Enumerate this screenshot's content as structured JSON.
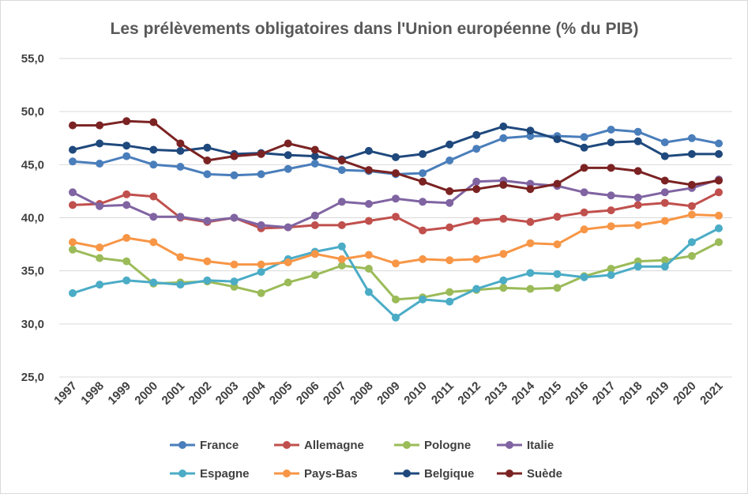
{
  "chart_data": {
    "type": "line",
    "title": "Les prélèvements obligatoires dans l'Union européenne (% du PIB)",
    "xlabel": "",
    "ylabel": "",
    "ylim": [
      25,
      55
    ],
    "yticks": [
      "25,0",
      "30,0",
      "35,0",
      "40,0",
      "45,0",
      "50,0",
      "55,0"
    ],
    "grid": true,
    "legend_position": "bottom",
    "x": [
      "1997",
      "1998",
      "1999",
      "2000",
      "2001",
      "2002",
      "2003",
      "2004",
      "2005",
      "2006",
      "2007",
      "2008",
      "2009",
      "2010",
      "2011",
      "2012",
      "2013",
      "2014",
      "2015",
      "2016",
      "2017",
      "2018",
      "2019",
      "2020",
      "2021"
    ],
    "series": [
      {
        "name": "France",
        "color": "#4a7ebb",
        "values": [
          45.3,
          45.1,
          45.8,
          45.0,
          44.8,
          44.1,
          44.0,
          44.1,
          44.6,
          45.1,
          44.5,
          44.4,
          44.1,
          44.2,
          45.4,
          46.5,
          47.5,
          47.7,
          47.7,
          47.6,
          48.3,
          48.1,
          47.1,
          47.5,
          47.0
        ]
      },
      {
        "name": "Allemagne",
        "color": "#c0504d",
        "values": [
          41.2,
          41.3,
          42.2,
          42.0,
          40.0,
          39.6,
          40.0,
          39.0,
          39.1,
          39.3,
          39.3,
          39.7,
          40.1,
          38.8,
          39.1,
          39.7,
          39.9,
          39.6,
          40.1,
          40.5,
          40.7,
          41.2,
          41.4,
          41.1,
          42.4
        ]
      },
      {
        "name": "Pologne",
        "color": "#9bbb59",
        "values": [
          37.0,
          36.2,
          35.9,
          33.8,
          33.9,
          34.0,
          33.5,
          32.9,
          33.9,
          34.6,
          35.5,
          35.2,
          32.3,
          32.5,
          33.0,
          33.2,
          33.4,
          33.3,
          33.4,
          34.5,
          35.2,
          35.9,
          36.0,
          36.4,
          37.7
        ]
      },
      {
        "name": "Italie",
        "color": "#8064a2",
        "values": [
          42.4,
          41.1,
          41.2,
          40.1,
          40.1,
          39.7,
          40.0,
          39.3,
          39.1,
          40.2,
          41.5,
          41.3,
          41.8,
          41.5,
          41.4,
          43.4,
          43.5,
          43.2,
          43.0,
          42.4,
          42.1,
          41.9,
          42.4,
          42.8,
          43.6
        ]
      },
      {
        "name": "Espagne",
        "color": "#4bacc6",
        "values": [
          32.9,
          33.7,
          34.1,
          33.9,
          33.7,
          34.1,
          34.0,
          34.9,
          36.1,
          36.8,
          37.3,
          33.0,
          30.6,
          32.3,
          32.1,
          33.3,
          34.1,
          34.8,
          34.7,
          34.4,
          34.6,
          35.4,
          35.4,
          37.7,
          39.0
        ]
      },
      {
        "name": "Pays-Bas",
        "color": "#f79646",
        "values": [
          37.7,
          37.2,
          38.1,
          37.7,
          36.3,
          35.9,
          35.6,
          35.6,
          35.8,
          36.6,
          36.1,
          36.5,
          35.7,
          36.1,
          36.0,
          36.1,
          36.6,
          37.6,
          37.5,
          38.9,
          39.2,
          39.3,
          39.7,
          40.3,
          40.2
        ]
      },
      {
        "name": "Belgique",
        "color": "#1f497d",
        "values": [
          46.4,
          47.0,
          46.8,
          46.4,
          46.3,
          46.6,
          46.0,
          46.1,
          45.9,
          45.8,
          45.5,
          46.3,
          45.7,
          46.0,
          46.9,
          47.8,
          48.6,
          48.2,
          47.4,
          46.6,
          47.1,
          47.2,
          45.8,
          46.0,
          46.0
        ]
      },
      {
        "name": "Suède",
        "color": "#7b2323",
        "values": [
          48.7,
          48.7,
          49.1,
          49.0,
          47.0,
          45.4,
          45.8,
          46.0,
          47.0,
          46.4,
          45.4,
          44.5,
          44.2,
          43.4,
          42.5,
          42.7,
          43.1,
          42.7,
          43.2,
          44.7,
          44.7,
          44.4,
          43.5,
          43.1,
          43.5
        ]
      }
    ]
  }
}
